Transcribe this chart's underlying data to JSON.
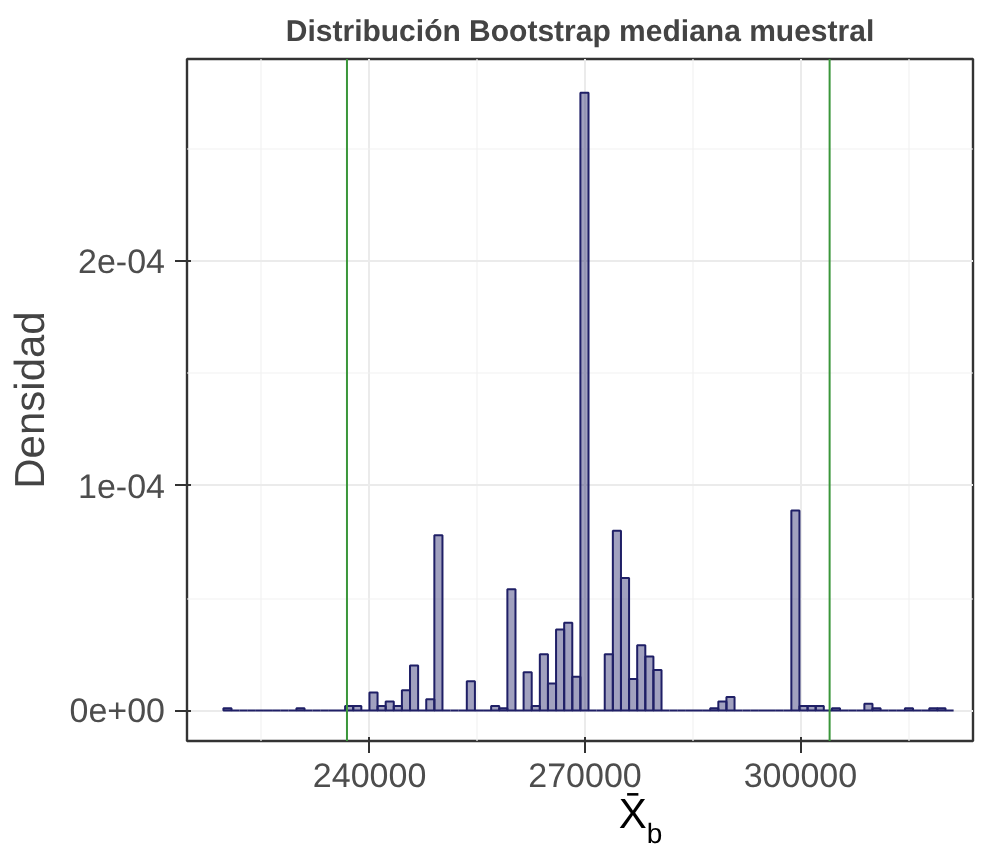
{
  "chart_data": {
    "type": "histogram",
    "title": "Distribución Bootstrap mediana muestral",
    "xlabel": "X̄$_{b}$",
    "ylabel": "Densidad",
    "bins": [
      219640,
      220770,
      221900,
      223030,
      224160,
      225290,
      226420,
      227550,
      228680,
      229810,
      230940,
      232070,
      233200,
      234330,
      235460,
      236590,
      237720,
      238850,
      239980,
      241110,
      242240,
      243370,
      244500,
      245630,
      246760,
      247890,
      249020,
      250150,
      251280,
      252410,
      253540,
      254670,
      255800,
      256930,
      258060,
      259190,
      260320,
      261450,
      262580,
      263710,
      264840,
      265970,
      267100,
      268230,
      269360,
      270490,
      271620,
      272750,
      273880,
      275010,
      276140,
      277270,
      278400,
      279530,
      280660,
      281790,
      282920,
      284050,
      285180,
      286310,
      287440,
      288570,
      289700,
      290830,
      291960,
      293090,
      294220,
      295350,
      296480,
      297610,
      298740,
      299870,
      301000,
      302130,
      303260,
      304390,
      305520,
      306650,
      307780,
      308910,
      310040,
      311170,
      312300,
      313430,
      314560,
      315690,
      316820,
      317950,
      319080,
      320210,
      321340
    ],
    "values": [
      1e-06,
      0,
      0,
      0,
      0,
      0,
      0,
      0,
      0,
      1e-06,
      0,
      0,
      0,
      0,
      0,
      2e-06,
      2e-06,
      0,
      8e-06,
      2e-06,
      4e-06,
      2e-06,
      9e-06,
      2e-05,
      0,
      5e-06,
      7.8e-05,
      0,
      0,
      0,
      1.3e-05,
      0,
      0,
      2e-06,
      1e-06,
      5.4e-05,
      0,
      1.7e-05,
      2e-06,
      2.5e-05,
      1.2e-05,
      3.6e-05,
      3.9e-05,
      1.5e-05,
      0.000275,
      0,
      0,
      2.5e-05,
      8e-05,
      5.9e-05,
      1.4e-05,
      2.9e-05,
      2.4e-05,
      1.8e-05,
      0,
      0,
      0,
      0,
      0,
      0,
      1e-06,
      4e-06,
      6e-06,
      0,
      0,
      0,
      0,
      0,
      0,
      0,
      8.9e-05,
      2e-06,
      2e-06,
      2e-06,
      0,
      1e-06,
      0,
      0,
      0,
      3e-06,
      1e-06,
      0,
      0,
      0,
      1e-06,
      0,
      0,
      1e-06,
      1e-06,
      0
    ],
    "color": "#1f1f66",
    "xlim": [
      214570,
      324040
    ],
    "ylim": [
      -1.36e-05,
      0.00029
    ],
    "xticks": [
      240000,
      270000,
      300000
    ],
    "yticks": [
      {
        "value": 0,
        "label": "0e+00"
      },
      {
        "value": 0.0001,
        "label": "1e-04"
      },
      {
        "value": 0.0002,
        "label": "2e-04"
      }
    ],
    "grid": true,
    "ref_lines": [
      {
        "axis": "x",
        "value": 236850,
        "color": "#3a963a"
      },
      {
        "axis": "x",
        "value": 304070,
        "color": "#3a963a"
      }
    ]
  }
}
